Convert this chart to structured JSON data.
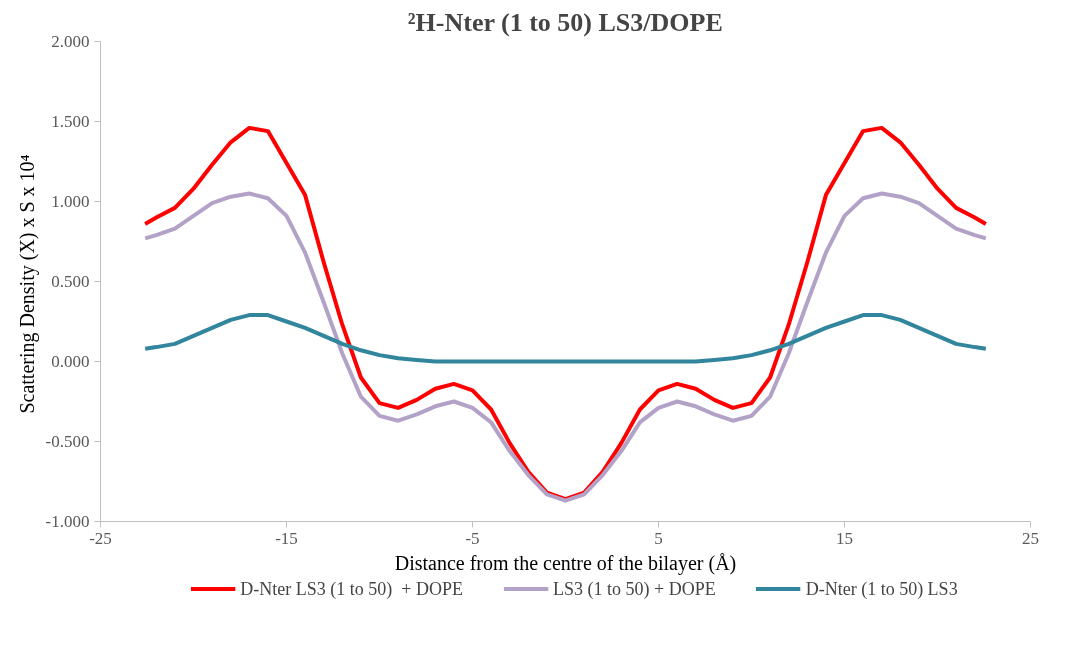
{
  "chart_data": {
    "type": "line",
    "title": "²H-Nter (1 to 50) LS3/DOPE",
    "xlabel": "Distance from the centre of the bilayer (Å)",
    "ylabel": "Scattering Density (X)  x S x 10⁴",
    "x": [
      -22.6,
      -22,
      -21,
      -20,
      -19,
      -18,
      -17,
      -16,
      -15,
      -14,
      -13,
      -12,
      -11,
      -10,
      -9,
      -8,
      -7,
      -6,
      -5,
      -4,
      -3,
      -2,
      -1,
      0,
      1,
      2,
      3,
      4,
      5,
      6,
      7,
      8,
      9,
      10,
      11,
      12,
      13,
      14,
      15,
      16,
      17,
      18,
      19,
      20,
      21,
      22,
      22.6
    ],
    "series": [
      {
        "name": "D-Nter LS3 (1 to 50)  + DOPE",
        "color": "#ff0000",
        "values": [
          0.86,
          0.9,
          0.96,
          1.08,
          1.23,
          1.37,
          1.46,
          1.44,
          1.24,
          1.04,
          0.62,
          0.23,
          -0.1,
          -0.26,
          -0.29,
          -0.24,
          -0.17,
          -0.14,
          -0.18,
          -0.3,
          -0.51,
          -0.69,
          -0.82,
          -0.86,
          -0.82,
          -0.69,
          -0.51,
          -0.3,
          -0.18,
          -0.14,
          -0.17,
          -0.24,
          -0.29,
          -0.26,
          -0.1,
          0.23,
          0.62,
          1.04,
          1.24,
          1.44,
          1.46,
          1.37,
          1.23,
          1.08,
          0.96,
          0.9,
          0.86
        ]
      },
      {
        "name": "LS3 (1 to 50) + DOPE",
        "color": "#b3a2c7",
        "values": [
          0.77,
          0.79,
          0.83,
          0.91,
          0.99,
          1.03,
          1.05,
          1.02,
          0.91,
          0.68,
          0.37,
          0.05,
          -0.22,
          -0.34,
          -0.37,
          -0.33,
          -0.28,
          -0.25,
          -0.29,
          -0.38,
          -0.56,
          -0.71,
          -0.83,
          -0.87,
          -0.83,
          -0.71,
          -0.56,
          -0.38,
          -0.29,
          -0.25,
          -0.28,
          -0.33,
          -0.37,
          -0.34,
          -0.22,
          0.05,
          0.37,
          0.68,
          0.91,
          1.02,
          1.05,
          1.03,
          0.99,
          0.91,
          0.83,
          0.79,
          0.77
        ]
      },
      {
        "name": "D-Nter (1 to 50) LS3",
        "color": "#31859c",
        "values": [
          0.08,
          0.09,
          0.11,
          0.16,
          0.21,
          0.26,
          0.29,
          0.29,
          0.25,
          0.21,
          0.16,
          0.11,
          0.07,
          0.04,
          0.02,
          0.01,
          0,
          0,
          0,
          0,
          0,
          0,
          0,
          0,
          0,
          0,
          0,
          0,
          0,
          0,
          0,
          0.01,
          0.02,
          0.04,
          0.07,
          0.11,
          0.16,
          0.21,
          0.25,
          0.29,
          0.29,
          0.26,
          0.21,
          0.16,
          0.11,
          0.09,
          0.08
        ]
      }
    ],
    "xlim": [
      -25,
      25
    ],
    "xticks": [
      -25,
      -15,
      -5,
      5,
      15,
      25
    ],
    "ylim": [
      -1,
      2
    ],
    "yticks": [
      {
        "value": -1,
        "label": "-1.000"
      },
      {
        "value": -0.5,
        "label": "-0.500"
      },
      {
        "value": 0,
        "label": "0.000"
      },
      {
        "value": 0.5,
        "label": "0.500"
      },
      {
        "value": 1,
        "label": "1.000"
      },
      {
        "value": 1.5,
        "label": "1.500"
      },
      {
        "value": 2,
        "label": "2.000"
      }
    ],
    "grid": false,
    "legend": "bottom",
    "line_style": "solid",
    "marker": "none"
  }
}
